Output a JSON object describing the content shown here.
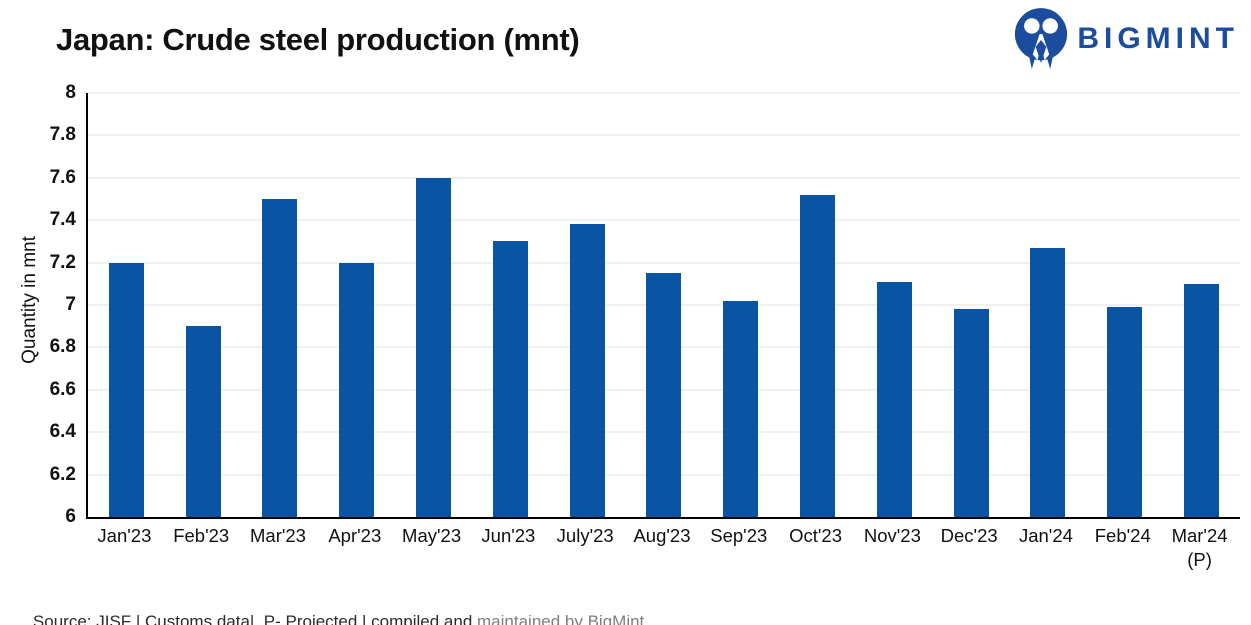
{
  "header": {
    "title": "Japan: Crude steel production (mnt)"
  },
  "brand": {
    "name": "BIGMINT",
    "color": "#1B4C9E"
  },
  "chart_data": {
    "type": "bar",
    "title": "Japan: Crude steel production (mnt)",
    "categories": [
      "Jan'23",
      "Feb'23",
      "Mar'23",
      "Apr'23",
      "May'23",
      "Jun'23",
      "July'23",
      "Aug'23",
      "Sep'23",
      "Oct'23",
      "Nov'23",
      "Dec'23",
      "Jan'24",
      "Feb'24",
      "Mar'24\n(P)"
    ],
    "values": [
      7.2,
      6.9,
      7.5,
      7.2,
      7.6,
      7.3,
      7.38,
      7.15,
      7.02,
      7.52,
      7.11,
      6.98,
      7.27,
      6.99,
      7.1
    ],
    "ylabel": "Quantity in mnt",
    "xlabel": "",
    "ylim": [
      6,
      8
    ],
    "yticks": [
      "8",
      "7.8",
      "7.6",
      "7.4",
      "7.2",
      "7",
      "6.8",
      "6.6",
      "6.4",
      "6.2",
      "6"
    ],
    "grid": true,
    "legend_position": "none",
    "bar_color": "#0A54A4",
    "gridline_color": "#F1F1F1"
  },
  "source": {
    "text": "Source: JISF | Customs data|  P- Projected | compiled and ",
    "credit": "maintained by BigMint"
  }
}
